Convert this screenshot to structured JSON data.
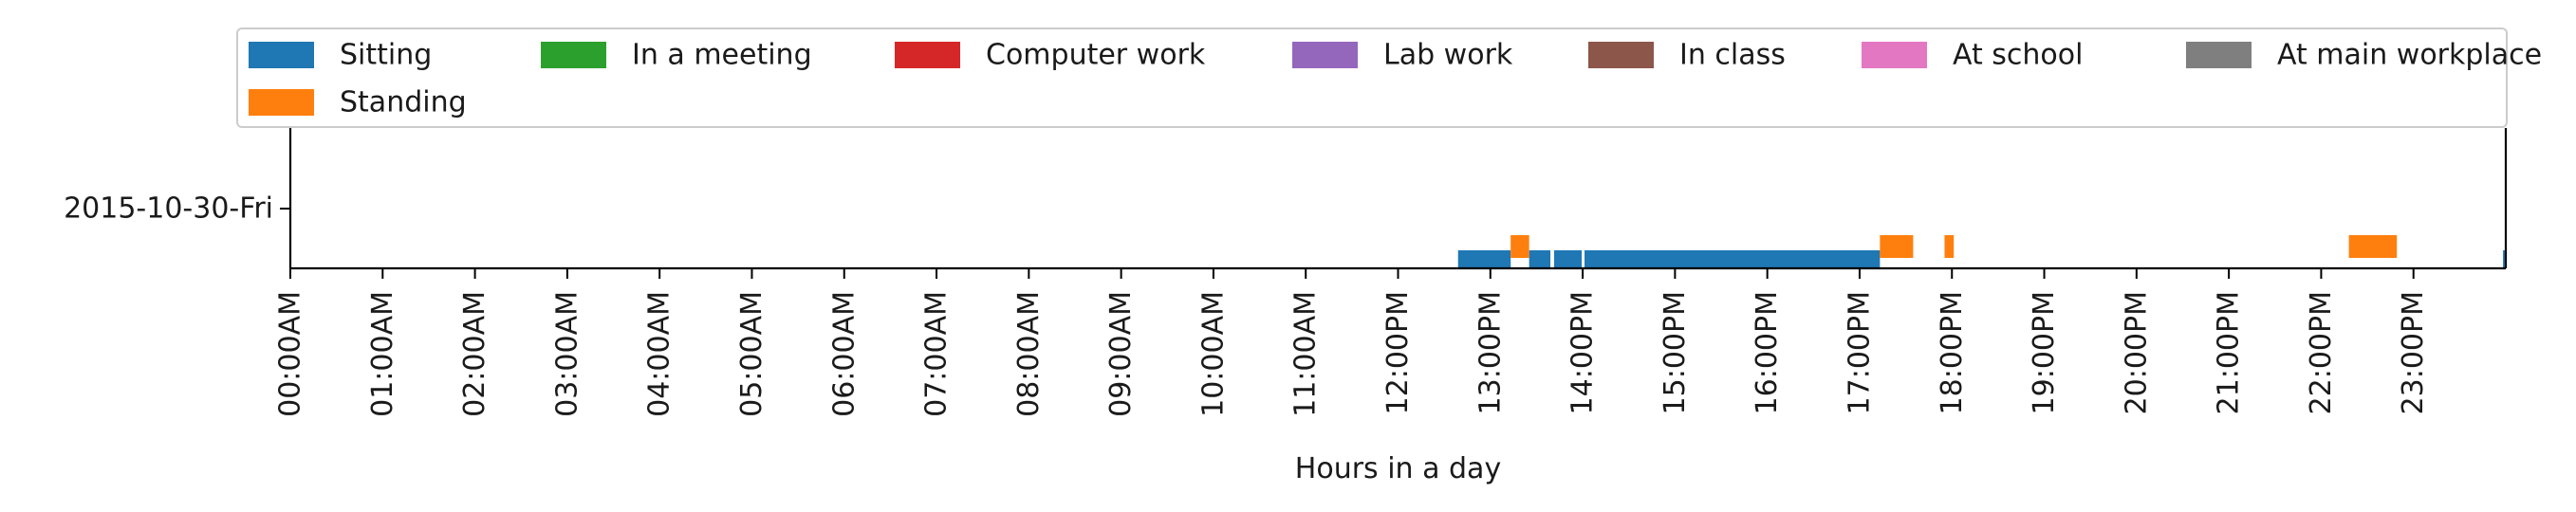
{
  "chart_data": {
    "type": "bar",
    "xlabel": "Hours in a day",
    "row_labels": [
      "2015-10-30-Fri"
    ],
    "x_unit": "hour",
    "xlim": [
      0,
      24
    ],
    "x_ticks": [
      {
        "value": 0,
        "label": "00:00AM"
      },
      {
        "value": 1,
        "label": "01:00AM"
      },
      {
        "value": 2,
        "label": "02:00AM"
      },
      {
        "value": 3,
        "label": "03:00AM"
      },
      {
        "value": 4,
        "label": "04:00AM"
      },
      {
        "value": 5,
        "label": "05:00AM"
      },
      {
        "value": 6,
        "label": "06:00AM"
      },
      {
        "value": 7,
        "label": "07:00AM"
      },
      {
        "value": 8,
        "label": "08:00AM"
      },
      {
        "value": 9,
        "label": "09:00AM"
      },
      {
        "value": 10,
        "label": "10:00AM"
      },
      {
        "value": 11,
        "label": "11:00AM"
      },
      {
        "value": 12,
        "label": "12:00PM"
      },
      {
        "value": 13,
        "label": "13:00PM"
      },
      {
        "value": 14,
        "label": "14:00PM"
      },
      {
        "value": 15,
        "label": "15:00PM"
      },
      {
        "value": 16,
        "label": "16:00PM"
      },
      {
        "value": 17,
        "label": "17:00PM"
      },
      {
        "value": 18,
        "label": "18:00PM"
      },
      {
        "value": 19,
        "label": "19:00PM"
      },
      {
        "value": 20,
        "label": "20:00PM"
      },
      {
        "value": 21,
        "label": "21:00PM"
      },
      {
        "value": 22,
        "label": "22:00PM"
      },
      {
        "value": 23,
        "label": "23:00PM"
      }
    ],
    "legend_position": "top",
    "legend_layout": "7 columns, 2 rows",
    "grid": false,
    "series": [
      {
        "name": "Sitting",
        "color": "#1f77b4",
        "level": "low",
        "intervals": [
          [
            12.65,
            13.22
          ],
          [
            13.42,
            13.65
          ],
          [
            13.69,
            13.99
          ],
          [
            14.02,
            17.22
          ],
          [
            23.97,
            24.0
          ]
        ]
      },
      {
        "name": "Standing",
        "color": "#ff7f0e",
        "level": "high",
        "intervals": [
          [
            13.22,
            13.42
          ],
          [
            17.22,
            17.58
          ],
          [
            17.92,
            18.02
          ],
          [
            22.3,
            22.82
          ]
        ]
      },
      {
        "name": "In a meeting",
        "color": "#2ca02c",
        "intervals": []
      },
      {
        "name": "Computer work",
        "color": "#d62728",
        "intervals": []
      },
      {
        "name": "Lab work",
        "color": "#9467bd",
        "intervals": []
      },
      {
        "name": "In class",
        "color": "#8c564b",
        "intervals": []
      },
      {
        "name": "At school",
        "color": "#e377c2",
        "intervals": []
      },
      {
        "name": "At main workplace",
        "color": "#7f7f7f",
        "intervals": []
      }
    ]
  }
}
